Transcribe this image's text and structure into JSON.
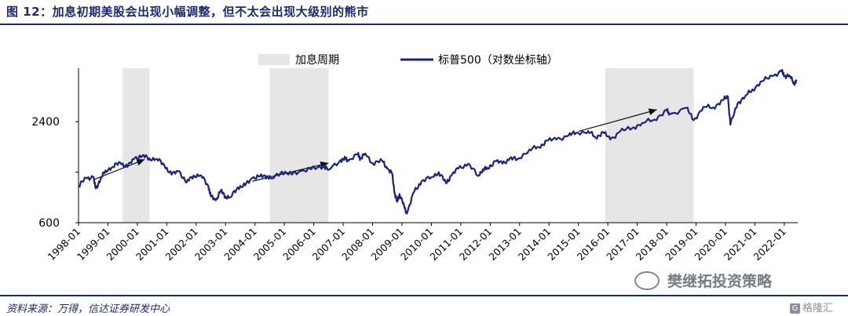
{
  "header": {
    "title": "图 12：加息初期美股会出现小幅调整，但不太会出现大级别的熊市"
  },
  "footer": {
    "source": "资料来源：万得，信达证券研发中心"
  },
  "watermark": {
    "text": "樊继拓投资策略",
    "logo_text": "格隆汇"
  },
  "colors": {
    "line": "#1a237e",
    "shade": "#e6e6e6",
    "arrow": "#111111",
    "title": "#1b2a6b"
  },
  "chart_data": {
    "type": "line",
    "y_scale": "log",
    "ylim": [
      600,
      5000
    ],
    "yticks": [
      "600",
      "2400"
    ],
    "ytick_values": [
      600,
      2400
    ],
    "x_tick_labels": [
      "1998-01",
      "1999-01",
      "2000-01",
      "2001-01",
      "2002-01",
      "2003-01",
      "2004-01",
      "2005-01",
      "2006-01",
      "2007-01",
      "2008-01",
      "2009-01",
      "2010-01",
      "2011-01",
      "2012-01",
      "2013-01",
      "2014-01",
      "2015-01",
      "2016-01",
      "2017-01",
      "2018-01",
      "2019-01",
      "2020-01",
      "2021-01",
      "2022-01"
    ],
    "legend": [
      {
        "name": "加息周期",
        "kind": "shade"
      },
      {
        "name": "标普500（对数坐标轴）",
        "kind": "line"
      }
    ],
    "shaded_periods": [
      {
        "start": "1999-07",
        "end": "2000-06"
      },
      {
        "start": "2004-07",
        "end": "2006-07"
      },
      {
        "start": "2015-12",
        "end": "2018-12"
      }
    ],
    "arrows": [
      {
        "from": [
          "1998-07",
          1080
        ],
        "to": [
          "2000-04",
          1430
        ]
      },
      {
        "from": [
          "2003-12",
          1060
        ],
        "to": [
          "2006-07",
          1360
        ]
      },
      {
        "from": [
          "2015-01",
          2100
        ],
        "to": [
          "2017-09",
          2830
        ]
      }
    ],
    "series": [
      {
        "name": "标普500（对数坐标轴）",
        "points": [
          [
            "1998-01",
            980
          ],
          [
            "1998-04",
            1110
          ],
          [
            "1998-07",
            1120
          ],
          [
            "1998-08",
            960
          ],
          [
            "1998-10",
            1090
          ],
          [
            "1998-12",
            1230
          ],
          [
            "1999-03",
            1290
          ],
          [
            "1999-06",
            1370
          ],
          [
            "1999-09",
            1290
          ],
          [
            "1999-12",
            1460
          ],
          [
            "2000-03",
            1500
          ],
          [
            "2000-06",
            1450
          ],
          [
            "2000-09",
            1440
          ],
          [
            "2000-12",
            1320
          ],
          [
            "2001-03",
            1160
          ],
          [
            "2001-06",
            1220
          ],
          [
            "2001-09",
            1040
          ],
          [
            "2001-12",
            1150
          ],
          [
            "2002-03",
            1150
          ],
          [
            "2002-06",
            990
          ],
          [
            "2002-07",
            860
          ],
          [
            "2002-09",
            815
          ],
          [
            "2002-11",
            930
          ],
          [
            "2003-01",
            860
          ],
          [
            "2003-03",
            850
          ],
          [
            "2003-06",
            975
          ],
          [
            "2003-09",
            1000
          ],
          [
            "2003-12",
            1110
          ],
          [
            "2004-03",
            1130
          ],
          [
            "2004-06",
            1140
          ],
          [
            "2004-08",
            1100
          ],
          [
            "2004-12",
            1210
          ],
          [
            "2005-04",
            1160
          ],
          [
            "2005-08",
            1220
          ],
          [
            "2005-12",
            1250
          ],
          [
            "2006-05",
            1310
          ],
          [
            "2006-07",
            1240
          ],
          [
            "2006-12",
            1420
          ],
          [
            "2007-02",
            1440
          ],
          [
            "2007-03",
            1400
          ],
          [
            "2007-07",
            1530
          ],
          [
            "2007-08",
            1450
          ],
          [
            "2007-10",
            1550
          ],
          [
            "2008-01",
            1360
          ],
          [
            "2008-05",
            1400
          ],
          [
            "2008-07",
            1260
          ],
          [
            "2008-09",
            1170
          ],
          [
            "2008-10",
            900
          ],
          [
            "2008-11",
            800
          ],
          [
            "2008-12",
            890
          ],
          [
            "2009-02",
            740
          ],
          [
            "2009-03",
            680
          ],
          [
            "2009-06",
            920
          ],
          [
            "2009-09",
            1060
          ],
          [
            "2010-01",
            1120
          ],
          [
            "2010-04",
            1200
          ],
          [
            "2010-07",
            1030
          ],
          [
            "2010-09",
            1140
          ],
          [
            "2010-12",
            1260
          ],
          [
            "2011-04",
            1350
          ],
          [
            "2011-08",
            1140
          ],
          [
            "2011-10",
            1250
          ],
          [
            "2011-12",
            1260
          ],
          [
            "2012-03",
            1400
          ],
          [
            "2012-06",
            1350
          ],
          [
            "2012-09",
            1450
          ],
          [
            "2012-12",
            1430
          ],
          [
            "2013-05",
            1640
          ],
          [
            "2013-09",
            1690
          ],
          [
            "2013-12",
            1850
          ],
          [
            "2014-04",
            1880
          ],
          [
            "2014-09",
            1990
          ],
          [
            "2014-12",
            2060
          ],
          [
            "2015-05",
            2110
          ],
          [
            "2015-08",
            1930
          ],
          [
            "2015-11",
            2080
          ],
          [
            "2016-02",
            1880
          ],
          [
            "2016-06",
            2100
          ],
          [
            "2016-11",
            2200
          ],
          [
            "2017-03",
            2360
          ],
          [
            "2017-08",
            2470
          ],
          [
            "2018-01",
            2820
          ],
          [
            "2018-02",
            2640
          ],
          [
            "2018-09",
            2900
          ],
          [
            "2018-12",
            2450
          ],
          [
            "2019-04",
            2940
          ],
          [
            "2019-08",
            2920
          ],
          [
            "2019-12",
            3230
          ],
          [
            "2020-02",
            3380
          ],
          [
            "2020-03",
            2300
          ],
          [
            "2020-06",
            3100
          ],
          [
            "2020-09",
            3400
          ],
          [
            "2020-12",
            3740
          ],
          [
            "2021-04",
            4180
          ],
          [
            "2021-08",
            4500
          ],
          [
            "2021-12",
            4770
          ],
          [
            "2022-01",
            4500
          ],
          [
            "2022-03",
            4530
          ],
          [
            "2022-05",
            4100
          ],
          [
            "2022-06",
            4200
          ]
        ]
      }
    ]
  }
}
